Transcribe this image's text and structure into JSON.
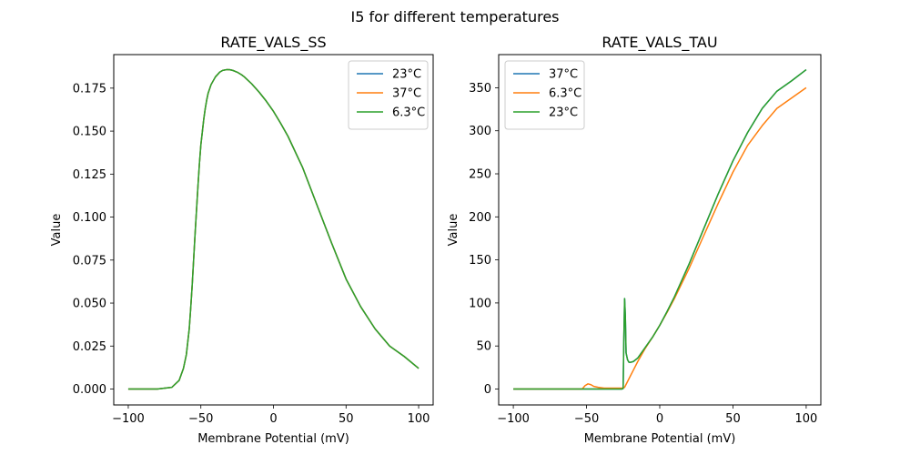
{
  "suptitle": "I5 for different temperatures",
  "chart_data": [
    {
      "type": "line",
      "title": "RATE_VALS_SS",
      "xlabel": "Membrane Potential (mV)",
      "ylabel": "Value",
      "xlim": [
        -110,
        110
      ],
      "ylim": [
        -0.00925,
        0.1945
      ],
      "xticks": [
        -100,
        -50,
        0,
        50,
        100
      ],
      "xtick_labels": [
        "−100",
        "−50",
        "0",
        "50",
        "100"
      ],
      "yticks": [
        0.0,
        0.025,
        0.05,
        0.075,
        0.1,
        0.125,
        0.15,
        0.175
      ],
      "ytick_labels": [
        "0.000",
        "0.025",
        "0.050",
        "0.075",
        "0.100",
        "0.125",
        "0.150",
        "0.175"
      ],
      "legend": "top-right",
      "grid": false,
      "series": [
        {
          "name": "23°C",
          "color": "#1f77b4",
          "x": [
            -100,
            -80,
            -70,
            -65,
            -62,
            -60,
            -58,
            -57,
            -56,
            -55,
            -54,
            -53,
            -52,
            -51,
            -50,
            -48,
            -47,
            -46,
            -45,
            -43,
            -40,
            -37,
            -35,
            -32,
            -30,
            -28,
            -25,
            -22,
            -20,
            -15,
            -10,
            -5,
            0,
            5,
            10,
            20,
            30,
            40,
            50,
            60,
            70,
            80,
            90,
            100
          ],
          "y": [
            0,
            0,
            0.001,
            0.005,
            0.012,
            0.02,
            0.035,
            0.047,
            0.06,
            0.075,
            0.09,
            0.104,
            0.118,
            0.131,
            0.142,
            0.157,
            0.163,
            0.168,
            0.172,
            0.177,
            0.1815,
            0.1843,
            0.1853,
            0.1858,
            0.1857,
            0.1853,
            0.1843,
            0.1828,
            0.1815,
            0.1775,
            0.1728,
            0.1675,
            0.1615,
            0.1545,
            0.147,
            0.129,
            0.107,
            0.085,
            0.064,
            0.048,
            0.035,
            0.025,
            0.019,
            0.012
          ]
        },
        {
          "name": "37°C",
          "color": "#ff7f0e",
          "x": [
            -100,
            -80,
            -70,
            -65,
            -62,
            -60,
            -58,
            -57,
            -56,
            -55,
            -54,
            -53,
            -52,
            -51,
            -50,
            -48,
            -47,
            -46,
            -45,
            -43,
            -40,
            -37,
            -35,
            -32,
            -30,
            -28,
            -25,
            -22,
            -20,
            -15,
            -10,
            -5,
            0,
            5,
            10,
            20,
            30,
            40,
            50,
            60,
            70,
            80,
            90,
            100
          ],
          "y": [
            0,
            0,
            0.001,
            0.005,
            0.012,
            0.02,
            0.035,
            0.047,
            0.06,
            0.075,
            0.09,
            0.104,
            0.118,
            0.131,
            0.142,
            0.157,
            0.163,
            0.168,
            0.172,
            0.177,
            0.1815,
            0.1843,
            0.1853,
            0.1858,
            0.1857,
            0.1853,
            0.1843,
            0.1828,
            0.1815,
            0.1775,
            0.1728,
            0.1675,
            0.1615,
            0.1545,
            0.147,
            0.129,
            0.107,
            0.085,
            0.064,
            0.048,
            0.035,
            0.025,
            0.019,
            0.012
          ]
        },
        {
          "name": "6.3°C",
          "color": "#2ca02c",
          "x": [
            -100,
            -80,
            -70,
            -65,
            -62,
            -60,
            -58,
            -57,
            -56,
            -55,
            -54,
            -53,
            -52,
            -51,
            -50,
            -48,
            -47,
            -46,
            -45,
            -43,
            -40,
            -37,
            -35,
            -32,
            -30,
            -28,
            -25,
            -22,
            -20,
            -15,
            -10,
            -5,
            0,
            5,
            10,
            20,
            30,
            40,
            50,
            60,
            70,
            80,
            90,
            100
          ],
          "y": [
            0,
            0,
            0.001,
            0.005,
            0.012,
            0.02,
            0.035,
            0.047,
            0.06,
            0.075,
            0.09,
            0.104,
            0.118,
            0.131,
            0.142,
            0.157,
            0.163,
            0.168,
            0.172,
            0.177,
            0.1815,
            0.1843,
            0.1853,
            0.1858,
            0.1857,
            0.1853,
            0.1843,
            0.1828,
            0.1815,
            0.1775,
            0.1728,
            0.1675,
            0.1615,
            0.1545,
            0.147,
            0.129,
            0.107,
            0.085,
            0.064,
            0.048,
            0.035,
            0.025,
            0.019,
            0.012
          ]
        }
      ]
    },
    {
      "type": "line",
      "title": "RATE_VALS_TAU",
      "xlabel": "Membrane Potential (mV)",
      "ylabel": "Value",
      "xlim": [
        -110,
        110
      ],
      "ylim": [
        -18.5,
        388.5
      ],
      "xticks": [
        -100,
        -50,
        0,
        50,
        100
      ],
      "xtick_labels": [
        "−100",
        "−50",
        "0",
        "50",
        "100"
      ],
      "yticks": [
        0,
        50,
        100,
        150,
        200,
        250,
        300,
        350
      ],
      "ytick_labels": [
        "0",
        "50",
        "100",
        "150",
        "200",
        "250",
        "300",
        "350"
      ],
      "legend": "top-left",
      "grid": false,
      "series": [
        {
          "name": "37°C",
          "color": "#1f77b4",
          "x": [
            -100,
            -26,
            -25,
            -24.5,
            -24,
            -23.5,
            -23,
            -22,
            -21,
            -20,
            -18,
            -15,
            -10,
            -5,
            0,
            5,
            10,
            20,
            30,
            40,
            50,
            60,
            70,
            80,
            90,
            100
          ],
          "y": [
            0,
            0,
            0.5,
            60,
            105,
            85,
            42,
            34,
            31,
            31,
            32,
            36,
            48,
            60,
            74,
            90,
            107,
            145,
            186,
            227,
            265,
            298,
            326,
            346,
            358,
            371
          ]
        },
        {
          "name": "6.3°C",
          "color": "#ff7f0e",
          "x": [
            -100,
            -53,
            -51,
            -49,
            -47,
            -45,
            -42,
            -38,
            -34,
            -30,
            -26,
            -24,
            -21,
            -18,
            -15,
            -10,
            -5,
            0,
            5,
            10,
            20,
            30,
            40,
            50,
            60,
            70,
            80,
            90,
            100
          ],
          "y": [
            0,
            0,
            4,
            6,
            5,
            3,
            2,
            1,
            1,
            1,
            1,
            2,
            12,
            22,
            32,
            47,
            60,
            74,
            89,
            105,
            140,
            178,
            216,
            252,
            283,
            306,
            326,
            338,
            350
          ]
        },
        {
          "name": "23°C",
          "color": "#2ca02c",
          "x": [
            -100,
            -26,
            -25,
            -24.5,
            -24,
            -23.5,
            -23,
            -22,
            -21,
            -20,
            -18,
            -15,
            -10,
            -5,
            0,
            5,
            10,
            20,
            30,
            40,
            50,
            60,
            70,
            80,
            90,
            100
          ],
          "y": [
            0,
            0,
            0.5,
            60,
            105,
            85,
            42,
            34,
            31,
            31,
            32,
            36,
            48,
            60,
            74,
            90,
            107,
            145,
            186,
            227,
            265,
            298,
            326,
            346,
            358,
            371
          ]
        }
      ]
    }
  ]
}
